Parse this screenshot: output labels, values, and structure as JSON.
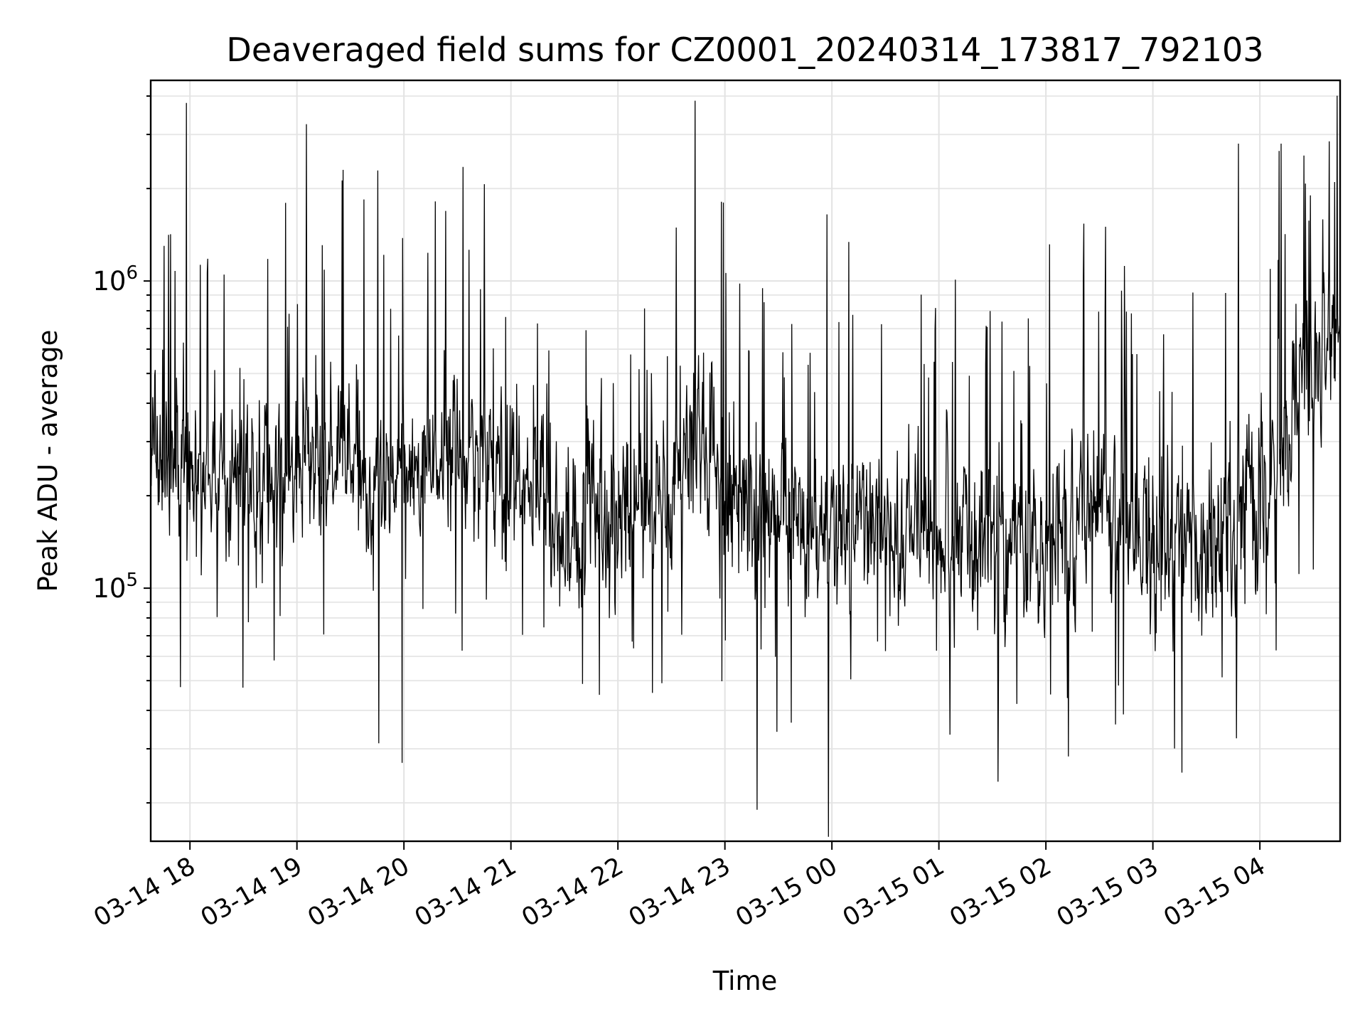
{
  "chart_data": {
    "type": "line",
    "title": "Deaveraged field sums for CZ0001_20240314_173817_792103",
    "xlabel": "Time",
    "ylabel": "Peak ADU - average",
    "yscale": "log",
    "xlim": [
      "2024-03-14 17:38",
      "2024-03-15 04:45"
    ],
    "ylim": [
      15000,
      4500000
    ],
    "grid": true,
    "x_ticks": [
      "03-14 18",
      "03-14 19",
      "03-14 20",
      "03-14 21",
      "03-14 22",
      "03-14 23",
      "03-15 00",
      "03-15 01",
      "03-15 02",
      "03-15 03",
      "03-15 04"
    ],
    "y_ticks": [
      {
        "base": "10",
        "exp": "5",
        "value": 100000
      },
      {
        "base": "10",
        "exp": "6",
        "value": 1000000
      }
    ],
    "series_color": "#000000",
    "profile": {
      "x": [
        "2024-03-14 17:38",
        "2024-03-14 18:00",
        "2024-03-14 18:30",
        "2024-03-14 19:00",
        "2024-03-14 19:30",
        "2024-03-14 19:45",
        "2024-03-14 20:00",
        "2024-03-14 20:30",
        "2024-03-14 21:00",
        "2024-03-14 21:30",
        "2024-03-14 22:00",
        "2024-03-14 22:30",
        "2024-03-14 22:45",
        "2024-03-14 23:00",
        "2024-03-14 23:30",
        "2024-03-15 00:00",
        "2024-03-15 00:30",
        "2024-03-15 01:00",
        "2024-03-15 01:30",
        "2024-03-15 02:00",
        "2024-03-15 02:30",
        "2024-03-15 03:00",
        "2024-03-15 03:30",
        "2024-03-15 03:50",
        "2024-03-15 04:10",
        "2024-03-15 04:30",
        "2024-03-15 04:45"
      ],
      "median": [
        280000,
        240000,
        220000,
        240000,
        260000,
        180000,
        250000,
        250000,
        220000,
        150000,
        170000,
        200000,
        400000,
        180000,
        170000,
        150000,
        160000,
        150000,
        140000,
        130000,
        200000,
        140000,
        140000,
        160000,
        250000,
        550000,
        750000
      ]
    },
    "notable_points": [
      {
        "x": "2024-03-14 17:58",
        "y": 3800000
      },
      {
        "x": "2024-03-14 19:26",
        "y": 2300000
      },
      {
        "x": "2024-03-14 19:59",
        "y": 27000
      },
      {
        "x": "2024-03-14 22:59",
        "y": 1800000
      },
      {
        "x": "2024-03-14 23:18",
        "y": 19000
      },
      {
        "x": "2024-03-14 23:58",
        "y": 15500
      },
      {
        "x": "2024-03-15 02:39",
        "y": 36000
      },
      {
        "x": "2024-03-15 03:48",
        "y": 2800000
      },
      {
        "x": "2024-03-15 04:12",
        "y": 2800000
      },
      {
        "x": "2024-03-15 04:42",
        "y": 2100000
      }
    ]
  }
}
